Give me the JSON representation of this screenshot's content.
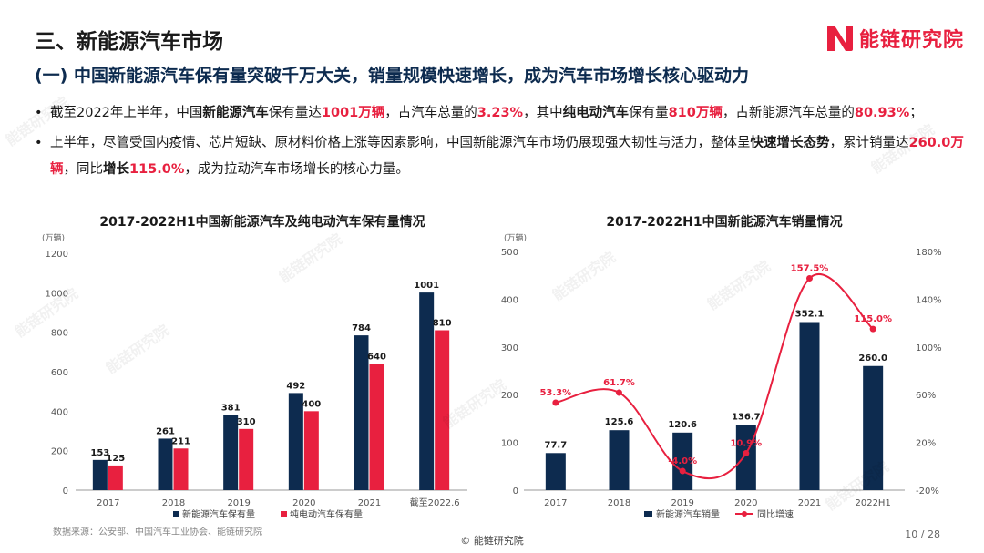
{
  "header": {
    "section_title": "三、新能源汽车市场",
    "subtitle": "(一) 中国新能源汽车保有量突破千万大关，销量规模快速增长，成为汽车市场增长核心驱动力",
    "logo_text": "能链研究院"
  },
  "bullets": [
    [
      {
        "t": "截至2022年上半年，中国",
        "s": ""
      },
      {
        "t": "新能源汽车",
        "s": "bold"
      },
      {
        "t": "保有量达",
        "s": ""
      },
      {
        "t": "1001万辆",
        "s": "red"
      },
      {
        "t": "，占汽车总量的",
        "s": ""
      },
      {
        "t": "3.23%",
        "s": "red"
      },
      {
        "t": "，其中",
        "s": ""
      },
      {
        "t": "纯电动汽车",
        "s": "bold"
      },
      {
        "t": "保有量",
        "s": ""
      },
      {
        "t": "810万辆",
        "s": "red"
      },
      {
        "t": "，占新能源汽车总量的",
        "s": ""
      },
      {
        "t": "80.93%",
        "s": "red"
      },
      {
        "t": "；",
        "s": ""
      }
    ],
    [
      {
        "t": "上半年，尽管受国内疫情、芯片短缺、原材料价格上涨等因素影响，中国新能源汽车市场仍展现强大韧性与活力，整体呈",
        "s": ""
      },
      {
        "t": "快速增长态势",
        "s": "bold"
      },
      {
        "t": "，累计销量达",
        "s": ""
      },
      {
        "t": "260.0万辆",
        "s": "red"
      },
      {
        "t": "，同比",
        "s": ""
      },
      {
        "t": "增长",
        "s": "bold"
      },
      {
        "t": "115.0%",
        "s": "red"
      },
      {
        "t": "，成为拉动汽车市场增长的核心力量。",
        "s": ""
      }
    ]
  ],
  "bullet_marker": "•",
  "chart_data": [
    {
      "type": "bar",
      "title": "2017-2022H1中国新能源汽车及纯电动汽车保有量情况",
      "unit_label": "(万辆)",
      "categories": [
        "2017",
        "2018",
        "2019",
        "2020",
        "2021",
        "截至2022.6"
      ],
      "series": [
        {
          "name": "新能源汽车保有量",
          "values": [
            153,
            261,
            381,
            492,
            784,
            1001
          ],
          "color": "#0d2b4f"
        },
        {
          "name": "纯电动汽车保有量",
          "values": [
            125,
            211,
            310,
            400,
            640,
            810
          ],
          "color": "#e8203f"
        }
      ],
      "ylim": [
        0,
        1200
      ],
      "yticks": [
        0,
        200,
        400,
        600,
        800,
        1000,
        1200
      ],
      "grid": false,
      "legend": "bottom"
    },
    {
      "type": "bar+line",
      "title": "2017-2022H1中国新能源汽车销量情况",
      "unit_label": "(万辆)",
      "categories": [
        "2017",
        "2018",
        "2019",
        "2020",
        "2021",
        "2022H1"
      ],
      "bar_series": {
        "name": "新能源汽车销量",
        "values": [
          77.7,
          125.6,
          120.6,
          136.7,
          352.1,
          260.0
        ],
        "labels": [
          "77.7",
          "125.6",
          "120.6",
          "136.7",
          "352.1",
          "260.0"
        ],
        "color": "#0d2b4f"
      },
      "line_series": {
        "name": "同比增速",
        "values": [
          53.3,
          61.7,
          -4.0,
          10.9,
          157.5,
          115.0
        ],
        "labels": [
          "53.3%",
          "61.7%",
          "-4.0%",
          "10.9%",
          "157.5%",
          "115.0%"
        ],
        "color": "#e8203f"
      },
      "ylim": [
        0,
        500
      ],
      "yticks": [
        0,
        100,
        200,
        300,
        400,
        500
      ],
      "y2lim": [
        -20,
        180
      ],
      "y2ticks": [
        "-20%",
        "20%",
        "60%",
        "100%",
        "140%",
        "180%"
      ],
      "grid": false,
      "legend": "bottom"
    }
  ],
  "footer": {
    "source": "数据来源：公安部、中国汽车工业协会、能链研究院",
    "copyright": "© 能链研究院",
    "page": "10 / 28"
  }
}
